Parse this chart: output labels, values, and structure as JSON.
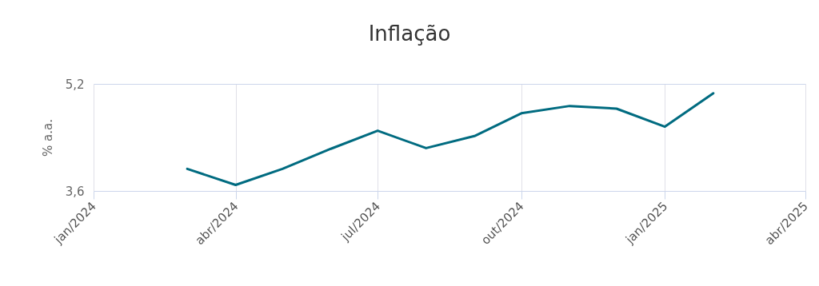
{
  "chart_data": {
    "type": "line",
    "title": "Inflação",
    "ylabel": "% a.a.",
    "x": [
      "2024-03",
      "2024-04",
      "2024-05",
      "2024-06",
      "2024-07",
      "2024-08",
      "2024-09",
      "2024-10",
      "2024-11",
      "2024-12",
      "2025-01",
      "2025-02"
    ],
    "series": [
      {
        "color": "#006b80",
        "values": [
          3.93,
          3.69,
          3.93,
          4.23,
          4.5,
          4.24,
          4.42,
          4.76,
          4.87,
          4.83,
          4.56,
          5.06
        ]
      }
    ],
    "xlim": [
      "2024-01",
      "2025-04"
    ],
    "xticks": [
      {
        "value": "2024-01",
        "label": "jan/2024"
      },
      {
        "value": "2024-04",
        "label": "abr/2024"
      },
      {
        "value": "2024-07",
        "label": "jul/2024"
      },
      {
        "value": "2024-10",
        "label": "out/2024"
      },
      {
        "value": "2025-01",
        "label": "jan/2025"
      },
      {
        "value": "2025-04",
        "label": "abr/2025"
      }
    ],
    "ylim": [
      3.6,
      5.2
    ],
    "yticks": [
      {
        "value": 3.6,
        "label": "3,6"
      },
      {
        "value": 5.2,
        "label": "5,2"
      }
    ],
    "grid": true,
    "marker": "none",
    "line_style": "solid"
  }
}
